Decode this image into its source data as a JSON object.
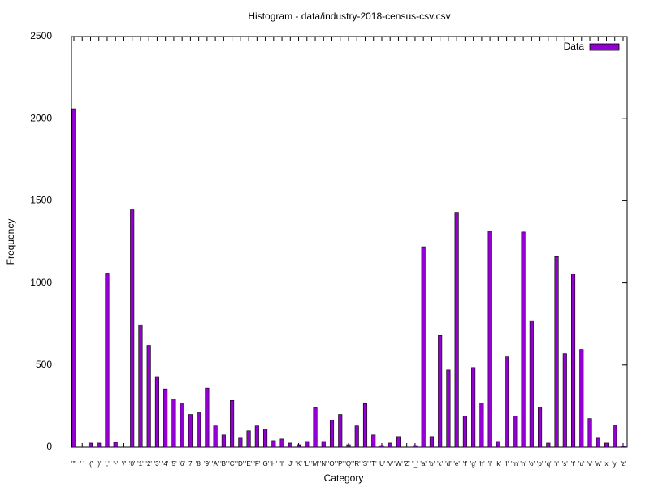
{
  "chart_data": {
    "type": "bar",
    "title": "Histogram - data/industry-2018-census-csv.csv",
    "x_label": "Category",
    "y_label": "Frequency",
    "legend": "top-right",
    "series": [
      {
        "name": "Data",
        "color": "#9400d3",
        "values": [
          2060,
          0,
          25,
          25,
          1060,
          30,
          0,
          1445,
          745,
          620,
          430,
          355,
          295,
          270,
          200,
          210,
          360,
          130,
          75,
          285,
          55,
          100,
          130,
          110,
          40,
          50,
          25,
          15,
          35,
          240,
          35,
          165,
          200,
          15,
          130,
          265,
          75,
          10,
          25,
          65,
          0,
          10,
          1220,
          65,
          680,
          470,
          1430,
          190,
          485,
          270,
          1315,
          35,
          550,
          190,
          1310,
          770,
          245,
          25,
          1160,
          570,
          1055,
          595,
          175,
          55,
          25,
          135,
          5
        ]
      }
    ],
    "categories": [
      "'\"'",
      "' '",
      "'('",
      "')'",
      "','",
      "'-'",
      "'/'",
      "'0'",
      "'1'",
      "'2'",
      "'3'",
      "'4'",
      "'5'",
      "'6'",
      "'7'",
      "'8'",
      "'9'",
      "'A'",
      "'B'",
      "'C'",
      "'D'",
      "'E'",
      "'F'",
      "'G'",
      "'H'",
      "'I'",
      "'J'",
      "'K'",
      "'L'",
      "'M'",
      "'N'",
      "'O'",
      "'P'",
      "'Q'",
      "'R'",
      "'S'",
      "'T'",
      "'U'",
      "'V'",
      "'W'",
      "'Z'",
      "'_'",
      "'a'",
      "'b'",
      "'c'",
      "'d'",
      "'e'",
      "'f'",
      "'g'",
      "'h'",
      "'i'",
      "'k'",
      "'l'",
      "'m'",
      "'n'",
      "'o'",
      "'p'",
      "'q'",
      "'r'",
      "'s'",
      "'t'",
      "'u'",
      "'v'",
      "'w'",
      "'x'",
      "'y'",
      "'z'"
    ],
    "ylim": [
      0,
      2500
    ],
    "yticks": [
      0,
      500,
      1000,
      1500,
      2000,
      2500
    ]
  }
}
